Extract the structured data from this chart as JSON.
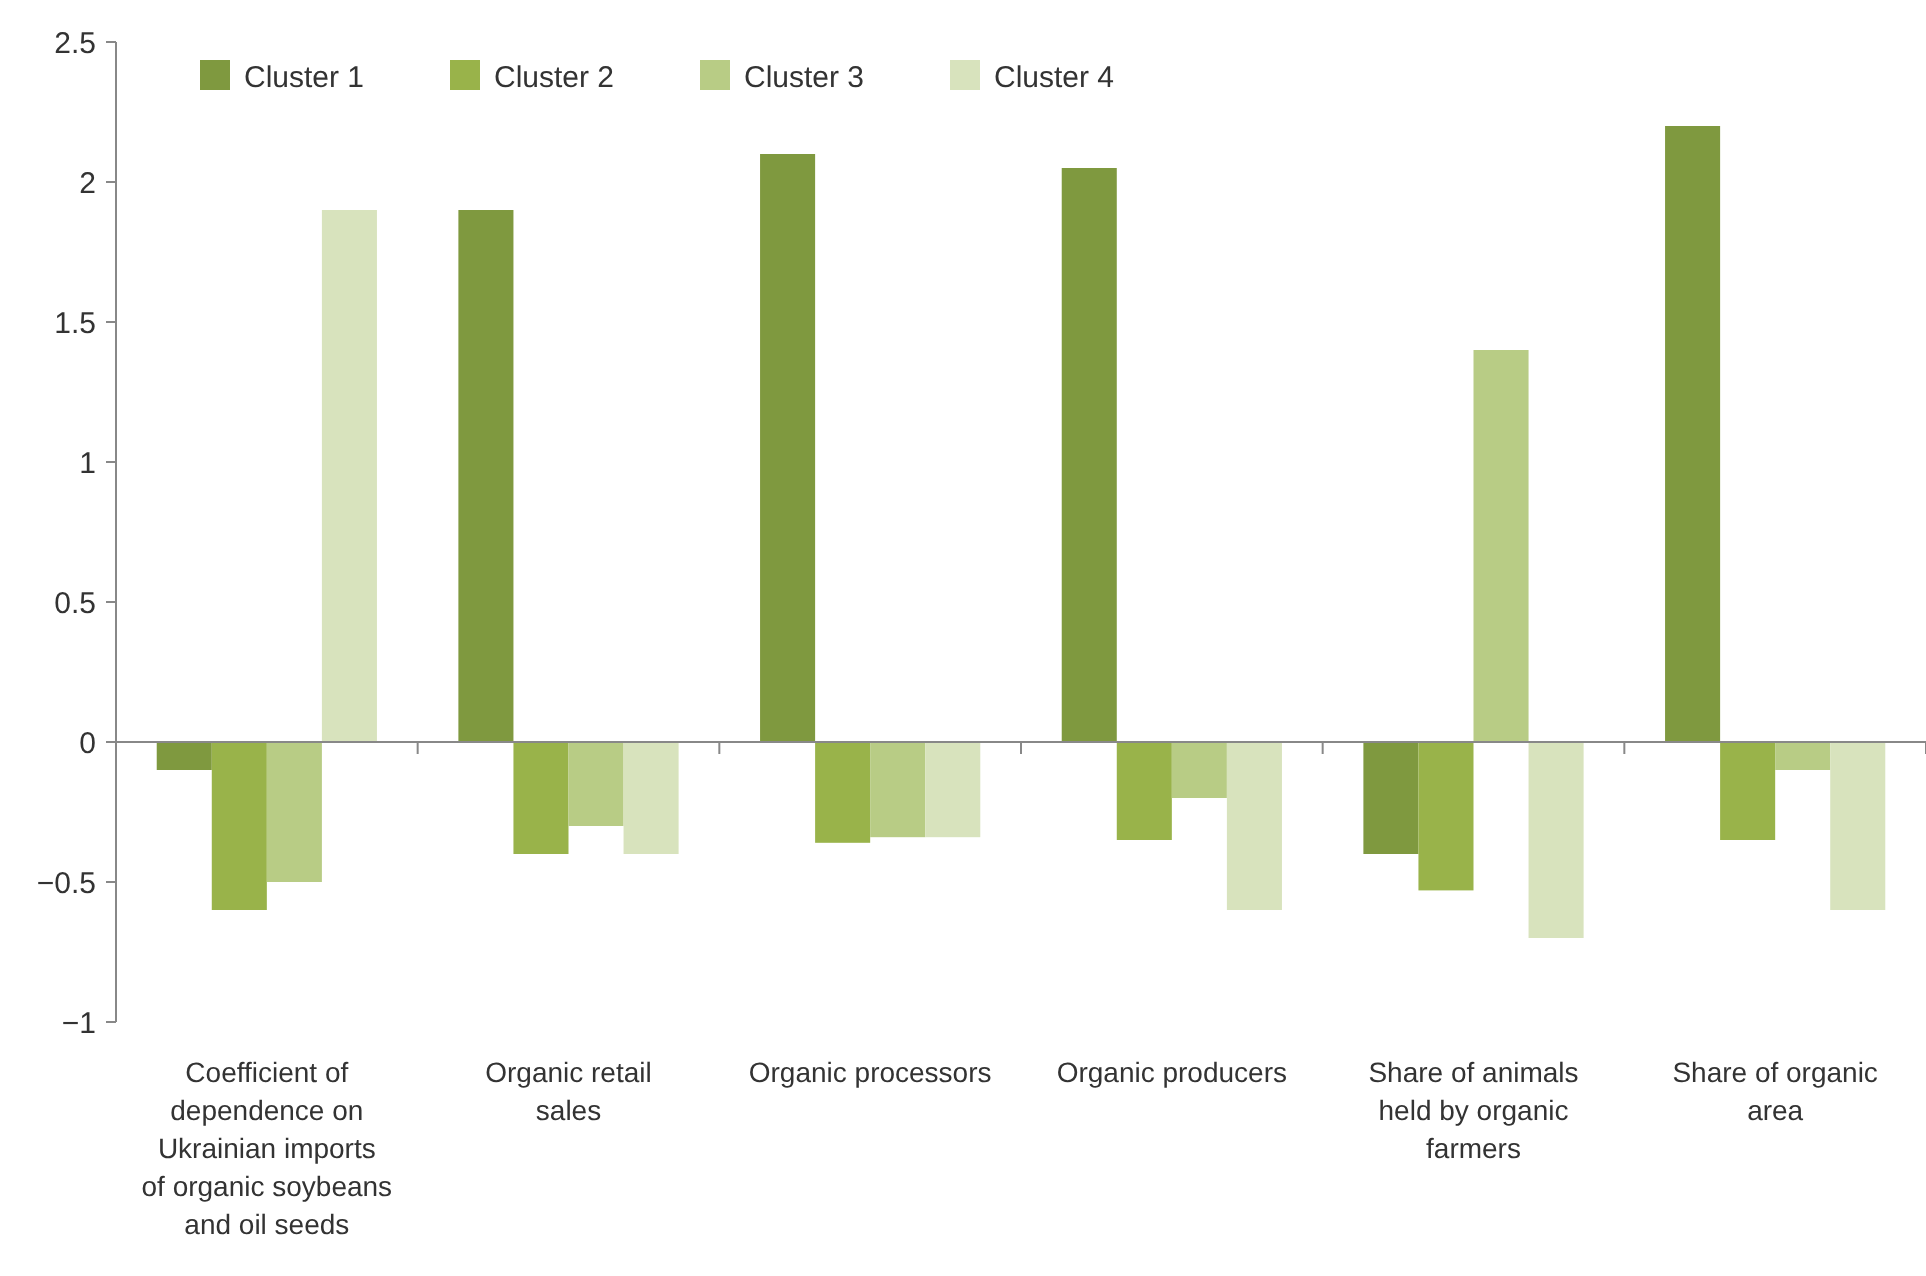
{
  "chart_data": {
    "type": "bar",
    "categories": [
      "Coefficient of dependence on Ukrainian imports of organic soybeans and oil seeds",
      "Organic retail sales",
      "Organic processors",
      "Organic producers",
      "Share of animals held by organic farmers",
      "Share of organic area"
    ],
    "series": [
      {
        "name": "Cluster 1",
        "color": "#7f993f",
        "values": [
          -0.1,
          1.9,
          2.1,
          2.05,
          -0.4,
          2.2
        ]
      },
      {
        "name": "Cluster 2",
        "color": "#99b34a",
        "values": [
          -0.6,
          -0.4,
          -0.36,
          -0.35,
          -0.53,
          -0.35
        ]
      },
      {
        "name": "Cluster 3",
        "color": "#b8cc85",
        "values": [
          -0.5,
          -0.3,
          -0.34,
          -0.2,
          1.4,
          -0.1
        ]
      },
      {
        "name": "Cluster 4",
        "color": "#d8e3bd",
        "values": [
          1.9,
          -0.4,
          -0.34,
          -0.6,
          -0.7,
          -0.6
        ]
      }
    ],
    "ylim": [
      -1,
      2.5
    ],
    "yticks": [
      {
        "value": -1,
        "label": "−1"
      },
      {
        "value": -0.5,
        "label": "−0.5"
      },
      0,
      0.5,
      1,
      1.5,
      2,
      2.5
    ],
    "legend": "top left"
  }
}
